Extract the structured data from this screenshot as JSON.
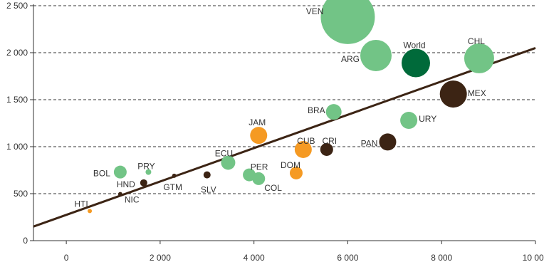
{
  "chart_data": {
    "type": "scatter",
    "title": "",
    "xlabel": "",
    "ylabel": "",
    "xlim": [
      -700,
      10000
    ],
    "ylim": [
      0,
      2500
    ],
    "x_ticks": [
      0,
      2000,
      4000,
      6000,
      8000,
      10000
    ],
    "x_tick_labels": [
      "0",
      "2 000",
      "4 000",
      "6 000",
      "8 000",
      "10 000"
    ],
    "y_ticks": [
      0,
      500,
      1000,
      1500,
      2000,
      2500
    ],
    "y_tick_labels": [
      "0",
      "500",
      "1 000",
      "1 500",
      "2 000",
      "2 500"
    ],
    "grid": "horizontal dashed at each y tick above 0",
    "colors": {
      "green": "#72c486",
      "orange": "#f59a23",
      "brown": "#3c2414",
      "world": "#006a3a",
      "trend": "#3c2414"
    },
    "trendline": {
      "x": [
        -700,
        10000
      ],
      "y": [
        150,
        2050
      ]
    },
    "points": [
      {
        "label": "VEN",
        "x": 6000,
        "y": 2380,
        "size": 38,
        "color": "green"
      },
      {
        "label": "ARG",
        "x": 6600,
        "y": 1970,
        "size": 22,
        "color": "green"
      },
      {
        "label": "World",
        "x": 7450,
        "y": 1890,
        "size": 20,
        "color": "world"
      },
      {
        "label": "CHL",
        "x": 8800,
        "y": 1940,
        "size": 21,
        "color": "green"
      },
      {
        "label": "MEX",
        "x": 8250,
        "y": 1560,
        "size": 19,
        "color": "brown"
      },
      {
        "label": "BRA",
        "x": 5700,
        "y": 1370,
        "size": 11,
        "color": "green"
      },
      {
        "label": "URY",
        "x": 7300,
        "y": 1280,
        "size": 12,
        "color": "green"
      },
      {
        "label": "JAM",
        "x": 4100,
        "y": 1120,
        "size": 12,
        "color": "orange"
      },
      {
        "label": "PAN",
        "x": 6850,
        "y": 1050,
        "size": 12,
        "color": "brown"
      },
      {
        "label": "CUB",
        "x": 5050,
        "y": 970,
        "size": 12,
        "color": "orange"
      },
      {
        "label": "CRI",
        "x": 5550,
        "y": 970,
        "size": 9,
        "color": "brown"
      },
      {
        "label": "ECU",
        "x": 3450,
        "y": 830,
        "size": 10,
        "color": "green"
      },
      {
        "label": "DOM",
        "x": 4900,
        "y": 720,
        "size": 9,
        "color": "orange"
      },
      {
        "label": "BOL",
        "x": 1150,
        "y": 730,
        "size": 9,
        "color": "green"
      },
      {
        "label": "PRY",
        "x": 1750,
        "y": 730,
        "size": 4,
        "color": "green"
      },
      {
        "label": "PER",
        "x": 3900,
        "y": 700,
        "size": 9,
        "color": "green"
      },
      {
        "label": "COL",
        "x": 4100,
        "y": 660,
        "size": 9,
        "color": "green"
      },
      {
        "label": "SLV",
        "x": 3000,
        "y": 700,
        "size": 5,
        "color": "brown"
      },
      {
        "label": "GTM",
        "x": 2300,
        "y": 690,
        "size": 3,
        "color": "brown"
      },
      {
        "label": "HND",
        "x": 1650,
        "y": 615,
        "size": 5,
        "color": "brown"
      },
      {
        "label": "NIC",
        "x": 1150,
        "y": 495,
        "size": 3,
        "color": "brown"
      },
      {
        "label": "HTI",
        "x": 500,
        "y": 315,
        "size": 3,
        "color": "orange"
      }
    ]
  }
}
